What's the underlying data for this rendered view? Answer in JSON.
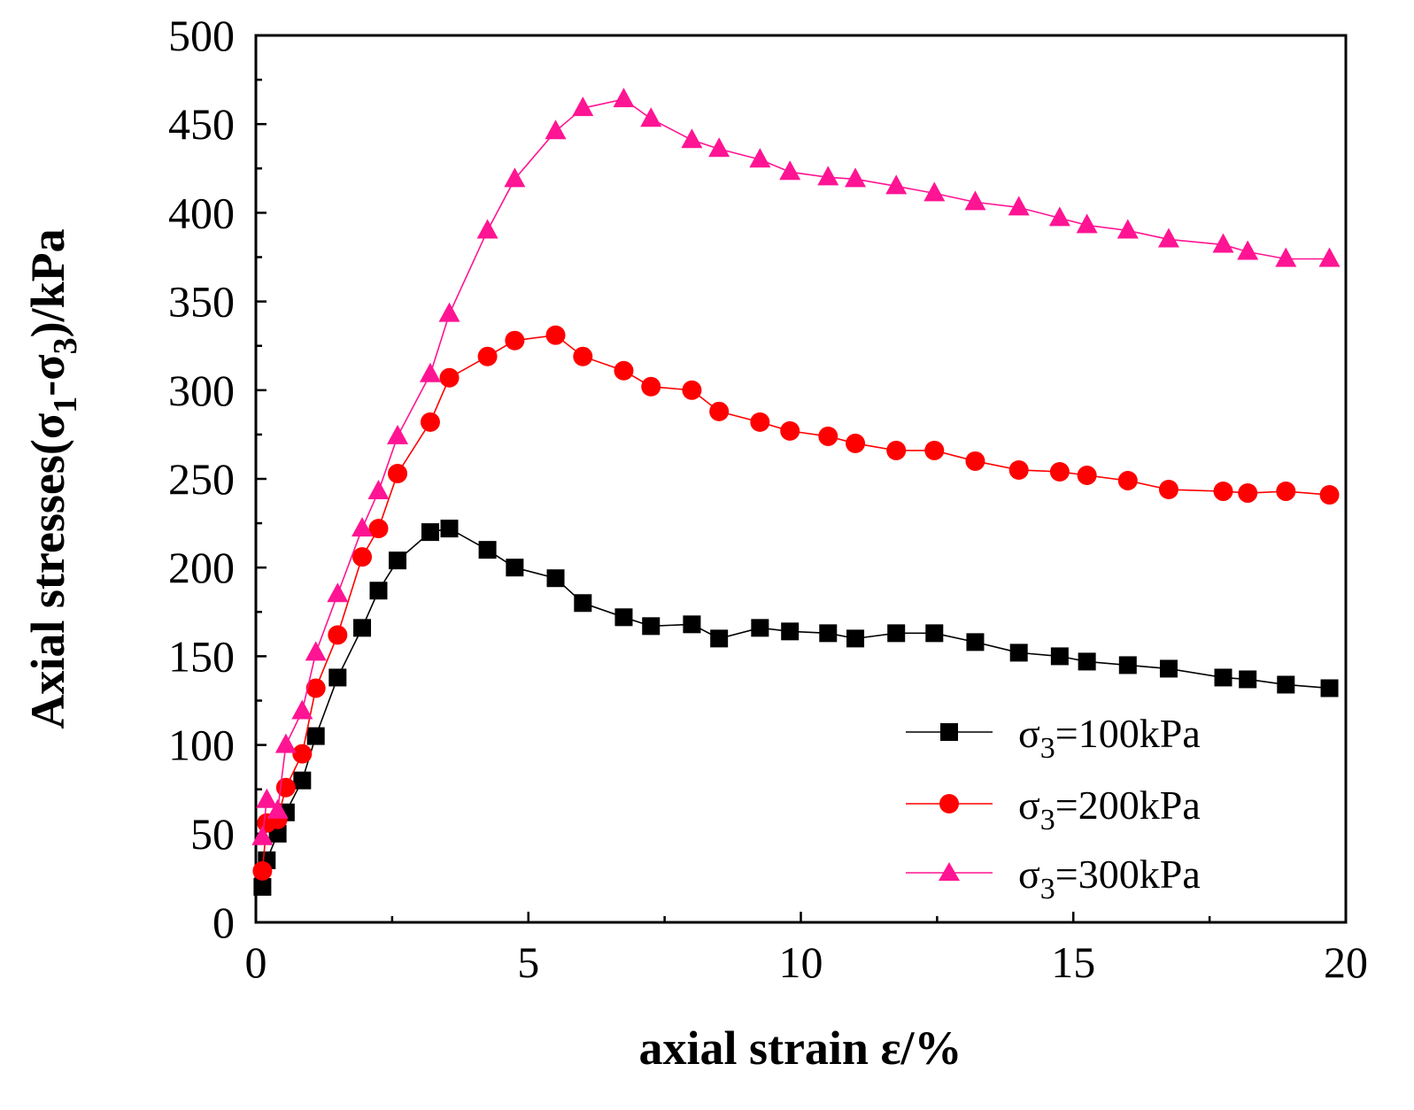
{
  "chart_data": {
    "type": "line",
    "title": "",
    "xlabel": "axial strain ε/%",
    "ylabel_parts": {
      "pre": "Axial stresses(σ",
      "sub1": "1",
      "mid": "-σ",
      "sub3": "3",
      "post": ")/kPa"
    },
    "xlim": [
      0,
      20
    ],
    "ylim": [
      0,
      500
    ],
    "xticks": [
      0,
      5,
      10,
      15,
      20
    ],
    "xtick_labels": [
      "0",
      "5",
      "10",
      "15",
      "20"
    ],
    "yticks": [
      0,
      50,
      100,
      150,
      200,
      250,
      300,
      350,
      400,
      450,
      500
    ],
    "ytick_labels": [
      "0",
      "50",
      "100",
      "150",
      "200",
      "250",
      "300",
      "350",
      "400",
      "450",
      "500"
    ],
    "grid": false,
    "legend_position": "bottom-right",
    "series": [
      {
        "name": "σ3=100kPa",
        "legend_main": "σ",
        "legend_sub": "3",
        "legend_rest": "=100kPa",
        "color": "#000000",
        "marker": "square",
        "x": [
          0.12,
          0.2,
          0.4,
          0.55,
          0.85,
          1.1,
          1.5,
          1.95,
          2.25,
          2.6,
          3.2,
          3.55,
          4.25,
          4.75,
          5.5,
          6.0,
          6.75,
          7.25,
          8.0,
          8.5,
          9.25,
          9.8,
          10.5,
          11.0,
          11.75,
          12.45,
          13.2,
          14.0,
          14.75,
          15.25,
          16.0,
          16.75,
          17.75,
          18.2,
          18.9,
          19.7
        ],
        "y": [
          20,
          35,
          50,
          62,
          80,
          105,
          138,
          166,
          187,
          204,
          220,
          222,
          210,
          200,
          194,
          180,
          172,
          167,
          168,
          160,
          166,
          164,
          163,
          160,
          163,
          163,
          158,
          152,
          150,
          147,
          145,
          143,
          138,
          137,
          134,
          132
        ]
      },
      {
        "name": "σ3=200kPa",
        "legend_main": "σ",
        "legend_sub": "3",
        "legend_rest": "=200kPa",
        "color": "#ff0000",
        "marker": "circle",
        "x": [
          0.12,
          0.2,
          0.4,
          0.55,
          0.85,
          1.1,
          1.5,
          1.95,
          2.25,
          2.6,
          3.2,
          3.55,
          4.25,
          4.75,
          5.5,
          6.0,
          6.75,
          7.25,
          8.0,
          8.5,
          9.25,
          9.8,
          10.5,
          11.0,
          11.75,
          12.45,
          13.2,
          14.0,
          14.75,
          15.25,
          16.0,
          16.75,
          17.75,
          18.2,
          18.9,
          19.7
        ],
        "y": [
          29,
          56,
          58,
          76,
          95,
          132,
          162,
          206,
          222,
          253,
          282,
          307,
          319,
          328,
          331,
          319,
          311,
          302,
          300,
          288,
          282,
          277,
          274,
          270,
          266,
          266,
          260,
          255,
          254,
          252,
          249,
          244,
          243,
          242,
          243,
          241
        ]
      },
      {
        "name": "σ3=300kPa",
        "legend_main": "σ",
        "legend_sub": "3",
        "legend_rest": "=300kPa",
        "color": "#ff1493",
        "marker": "triangle",
        "x": [
          0.12,
          0.2,
          0.4,
          0.55,
          0.85,
          1.1,
          1.5,
          1.95,
          2.25,
          2.6,
          3.2,
          3.55,
          4.25,
          4.75,
          5.5,
          6.0,
          6.75,
          7.25,
          8.0,
          8.5,
          9.25,
          9.8,
          10.5,
          11.0,
          11.75,
          12.45,
          13.2,
          14.0,
          14.75,
          15.25,
          16.0,
          16.75,
          17.75,
          18.2,
          18.9,
          19.7
        ],
        "y": [
          48,
          69,
          63,
          100,
          119,
          152,
          185,
          222,
          243,
          274,
          309,
          343,
          390,
          419,
          446,
          459,
          464,
          453,
          441,
          436,
          430,
          423,
          420,
          419,
          415,
          411,
          406,
          403,
          397,
          393,
          390,
          385,
          382,
          378,
          374,
          374
        ]
      }
    ]
  }
}
